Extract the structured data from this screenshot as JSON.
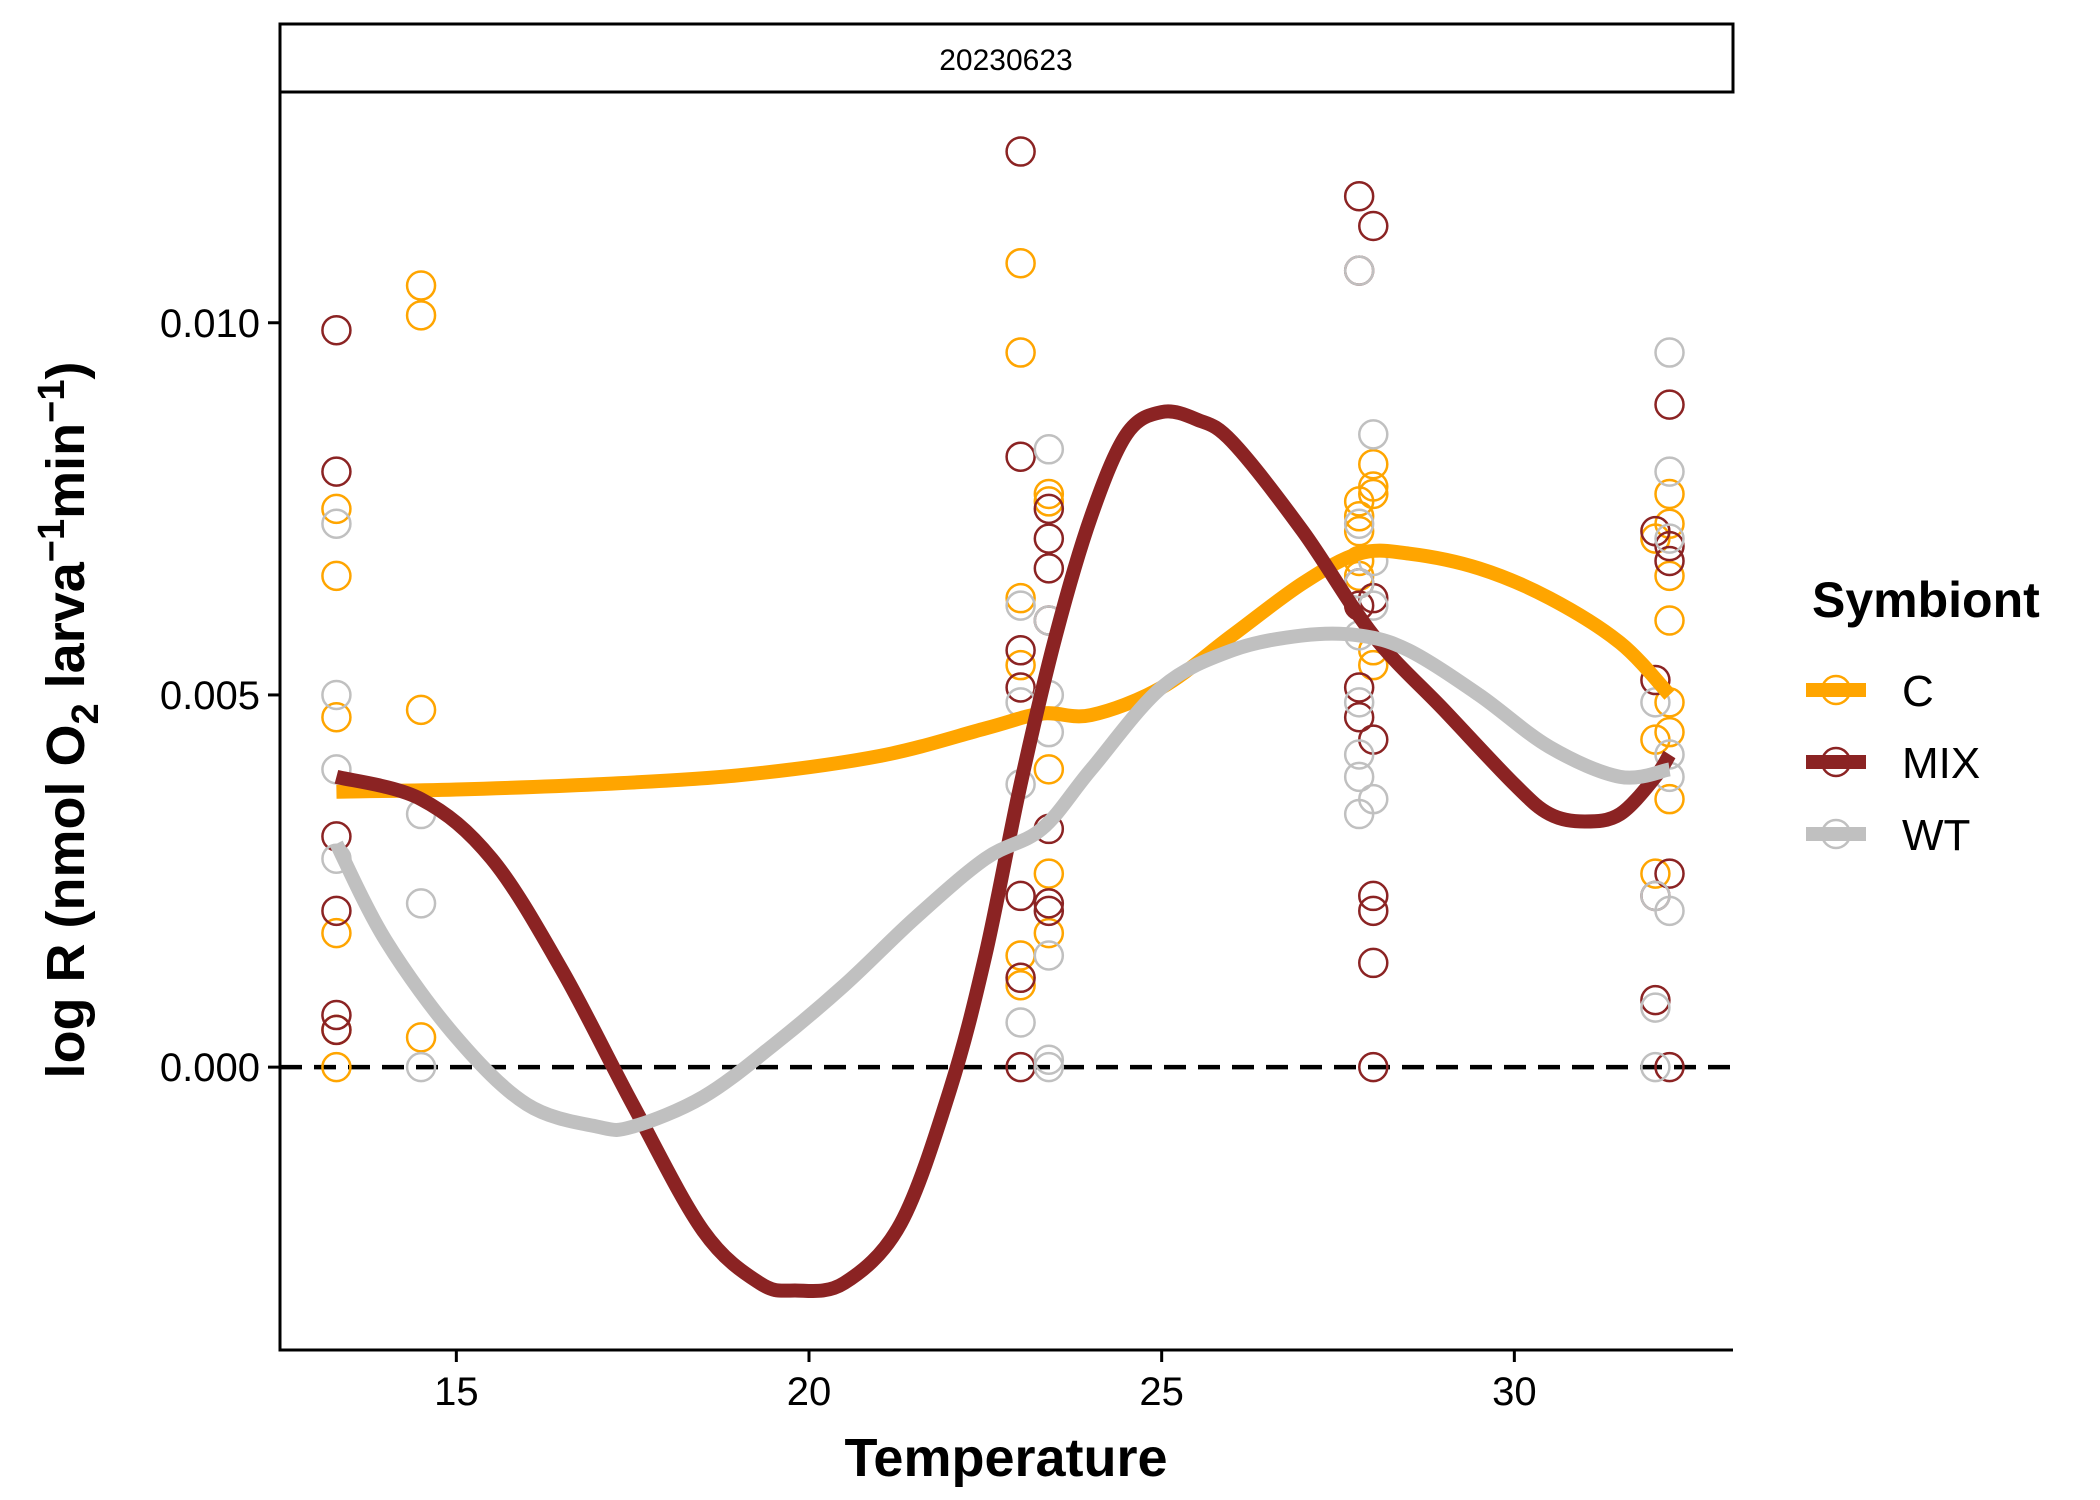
{
  "chart_data": {
    "type": "scatter",
    "facet_label": "20230623",
    "xlabel": "Temperature",
    "ylabel": "log R (nmol O",
    "ylabel_sub": "2",
    "ylabel_mid": " larva",
    "ylabel_sup1": "−1",
    "ylabel_mid2": "min",
    "ylabel_sup2": "−1",
    "ylabel_end": ")",
    "xlim": [
      12.5,
      33.1
    ],
    "ylim": [
      -0.0038,
      0.0131
    ],
    "x_ticks": [
      15,
      20,
      25,
      30
    ],
    "x_tick_labels": [
      "15",
      "20",
      "25",
      "30"
    ],
    "y_ticks": [
      0.0,
      0.005,
      0.01
    ],
    "y_tick_labels": [
      "0.000",
      "0.005",
      "0.010"
    ],
    "reference_line": {
      "y": 0.0,
      "style": "dashed",
      "color": "#000000"
    },
    "grid": false,
    "legend": {
      "title": "Symbiont",
      "placement": "right"
    },
    "series": [
      {
        "name": "C",
        "color": "#FFA500",
        "points": [
          [
            13.3,
            0.0075
          ],
          [
            13.3,
            0.0066
          ],
          [
            13.3,
            0.0047
          ],
          [
            13.3,
            0.0018
          ],
          [
            13.3,
            0.0005
          ],
          [
            13.3,
            0.0
          ],
          [
            14.5,
            0.0105
          ],
          [
            14.5,
            0.0101
          ],
          [
            14.5,
            0.0048
          ],
          [
            14.5,
            0.0004
          ],
          [
            23.0,
            0.0108
          ],
          [
            23.0,
            0.0096
          ],
          [
            23.0,
            0.0063
          ],
          [
            23.0,
            0.0054
          ],
          [
            23.0,
            0.0015
          ],
          [
            23.0,
            0.0011
          ],
          [
            23.4,
            0.0077
          ],
          [
            23.4,
            0.0076
          ],
          [
            23.4,
            0.004
          ],
          [
            23.4,
            0.0026
          ],
          [
            23.4,
            0.0018
          ],
          [
            27.8,
            0.0076
          ],
          [
            27.8,
            0.0074
          ],
          [
            27.8,
            0.0072
          ],
          [
            27.8,
            0.0068
          ],
          [
            27.8,
            0.0066
          ],
          [
            28.0,
            0.0081
          ],
          [
            28.0,
            0.0078
          ],
          [
            28.0,
            0.0077
          ],
          [
            28.0,
            0.0056
          ],
          [
            28.0,
            0.0054
          ],
          [
            32.0,
            0.0071
          ],
          [
            32.0,
            0.0044
          ],
          [
            32.0,
            0.0026
          ],
          [
            32.2,
            0.0077
          ],
          [
            32.2,
            0.0073
          ],
          [
            32.2,
            0.0066
          ],
          [
            32.2,
            0.006
          ],
          [
            32.2,
            0.0049
          ],
          [
            32.2,
            0.0045
          ],
          [
            32.2,
            0.0036
          ]
        ],
        "smooth": [
          [
            13.3,
            0.0037
          ],
          [
            15,
            0.00373
          ],
          [
            17,
            0.0038
          ],
          [
            19,
            0.00392
          ],
          [
            21,
            0.00418
          ],
          [
            22.5,
            0.00455
          ],
          [
            23.3,
            0.00475
          ],
          [
            24,
            0.00473
          ],
          [
            25,
            0.0051
          ],
          [
            26,
            0.0058
          ],
          [
            27,
            0.0065
          ],
          [
            27.8,
            0.0069
          ],
          [
            28.5,
            0.0069
          ],
          [
            29.5,
            0.0067
          ],
          [
            30.5,
            0.0063
          ],
          [
            31.5,
            0.0057
          ],
          [
            32.2,
            0.005
          ]
        ]
      },
      {
        "name": "MIX",
        "color": "#8B2323",
        "points": [
          [
            13.3,
            0.0099
          ],
          [
            13.3,
            0.008
          ],
          [
            13.3,
            0.0031
          ],
          [
            13.3,
            0.0021
          ],
          [
            13.3,
            0.0007
          ],
          [
            13.3,
            0.0005
          ],
          [
            23.0,
            0.0123
          ],
          [
            23.0,
            0.0082
          ],
          [
            23.0,
            0.0056
          ],
          [
            23.0,
            0.0051
          ],
          [
            23.0,
            0.0023
          ],
          [
            23.0,
            0.0012
          ],
          [
            23.0,
            0.0
          ],
          [
            23.4,
            0.0075
          ],
          [
            23.4,
            0.0071
          ],
          [
            23.4,
            0.0067
          ],
          [
            23.4,
            0.006
          ],
          [
            23.4,
            0.0032
          ],
          [
            23.4,
            0.0022
          ],
          [
            23.4,
            0.0021
          ],
          [
            27.8,
            0.0117
          ],
          [
            27.8,
            0.0107
          ],
          [
            27.8,
            0.0065
          ],
          [
            27.8,
            0.0062
          ],
          [
            27.8,
            0.0051
          ],
          [
            27.8,
            0.0047
          ],
          [
            28.0,
            0.0113
          ],
          [
            28.0,
            0.0063
          ],
          [
            28.0,
            0.0044
          ],
          [
            28.0,
            0.0023
          ],
          [
            28.0,
            0.0021
          ],
          [
            28.0,
            0.0014
          ],
          [
            28.0,
            0.0
          ],
          [
            32.0,
            0.0072
          ],
          [
            32.0,
            0.0052
          ],
          [
            32.0,
            0.0023
          ],
          [
            32.0,
            0.0009
          ],
          [
            32.2,
            0.0089
          ],
          [
            32.2,
            0.007
          ],
          [
            32.2,
            0.0068
          ],
          [
            32.2,
            0.0026
          ],
          [
            32.2,
            0.0
          ]
        ],
        "smooth": [
          [
            13.3,
            0.0039
          ],
          [
            14.5,
            0.0036
          ],
          [
            15.5,
            0.0028
          ],
          [
            16.5,
            0.0013
          ],
          [
            17.5,
            -0.0005
          ],
          [
            18.5,
            -0.0022
          ],
          [
            19.3,
            -0.0029
          ],
          [
            19.8,
            -0.003
          ],
          [
            20.5,
            -0.0029
          ],
          [
            21.3,
            -0.0021
          ],
          [
            22.0,
            -0.0003
          ],
          [
            22.5,
            0.0015
          ],
          [
            23.0,
            0.0038
          ],
          [
            23.5,
            0.0058
          ],
          [
            24.0,
            0.0074
          ],
          [
            24.5,
            0.0085
          ],
          [
            25.0,
            0.0088
          ],
          [
            25.5,
            0.0087
          ],
          [
            26.0,
            0.0084
          ],
          [
            27.0,
            0.0072
          ],
          [
            28.0,
            0.0058
          ],
          [
            29.0,
            0.0048
          ],
          [
            30.0,
            0.0038
          ],
          [
            30.5,
            0.0034
          ],
          [
            31.0,
            0.0033
          ],
          [
            31.5,
            0.0034
          ],
          [
            32.0,
            0.0039
          ],
          [
            32.2,
            0.0042
          ]
        ]
      },
      {
        "name": "WT",
        "color": "#C0C0C0",
        "points": [
          [
            13.3,
            0.0073
          ],
          [
            13.3,
            0.005
          ],
          [
            13.3,
            0.004
          ],
          [
            13.3,
            0.0028
          ],
          [
            14.5,
            0.0034
          ],
          [
            14.5,
            0.0022
          ],
          [
            14.5,
            0.0
          ],
          [
            23.0,
            0.0062
          ],
          [
            23.0,
            0.0049
          ],
          [
            23.0,
            0.0038
          ],
          [
            23.0,
            0.0006
          ],
          [
            23.4,
            0.0083
          ],
          [
            23.4,
            0.006
          ],
          [
            23.4,
            0.005
          ],
          [
            23.4,
            0.0045
          ],
          [
            23.4,
            0.0015
          ],
          [
            23.4,
            0.0001
          ],
          [
            23.4,
            0.0
          ],
          [
            27.8,
            0.0107
          ],
          [
            27.8,
            0.0073
          ],
          [
            27.8,
            0.0065
          ],
          [
            27.8,
            0.0058
          ],
          [
            27.8,
            0.0049
          ],
          [
            27.8,
            0.0042
          ],
          [
            27.8,
            0.0039
          ],
          [
            27.8,
            0.0034
          ],
          [
            28.0,
            0.0085
          ],
          [
            28.0,
            0.0068
          ],
          [
            28.0,
            0.0062
          ],
          [
            28.0,
            0.0036
          ],
          [
            32.0,
            0.0049
          ],
          [
            32.0,
            0.0023
          ],
          [
            32.0,
            0.0008
          ],
          [
            32.0,
            0.0
          ],
          [
            32.2,
            0.0096
          ],
          [
            32.2,
            0.008
          ],
          [
            32.2,
            0.0071
          ],
          [
            32.2,
            0.0042
          ],
          [
            32.2,
            0.0039
          ],
          [
            32.2,
            0.0021
          ]
        ],
        "smooth": [
          [
            13.3,
            0.003
          ],
          [
            14.0,
            0.0017
          ],
          [
            15.0,
            0.0004
          ],
          [
            16.0,
            -0.0005
          ],
          [
            17.0,
            -0.0008
          ],
          [
            17.5,
            -0.0008
          ],
          [
            18.5,
            -0.0004
          ],
          [
            19.5,
            0.0003
          ],
          [
            20.5,
            0.0011
          ],
          [
            21.5,
            0.002
          ],
          [
            22.5,
            0.0028
          ],
          [
            23.3,
            0.0032
          ],
          [
            24.0,
            0.004
          ],
          [
            25.0,
            0.0051
          ],
          [
            26.0,
            0.0056
          ],
          [
            27.0,
            0.0058
          ],
          [
            27.8,
            0.0058
          ],
          [
            28.5,
            0.0056
          ],
          [
            29.5,
            0.005
          ],
          [
            30.5,
            0.0043
          ],
          [
            31.5,
            0.0039
          ],
          [
            32.2,
            0.004
          ]
        ]
      }
    ]
  }
}
